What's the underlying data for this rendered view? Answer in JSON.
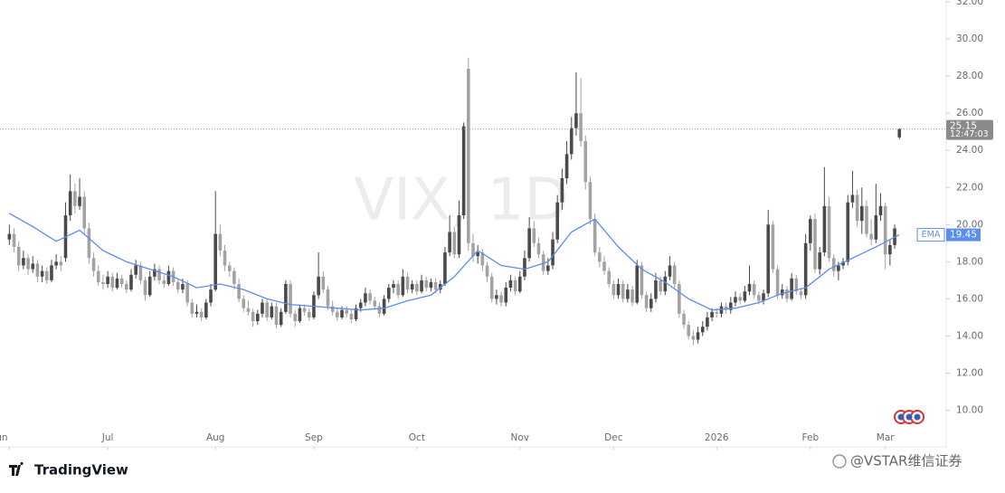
{
  "chart_data": {
    "type": "candlestick",
    "watermark": "VIX, 1D",
    "up_color": "#4a4a4a",
    "down_color": "#a3a3a3",
    "xlim": [
      -2,
      200
    ],
    "ylim": [
      9.1,
      32.1
    ],
    "yticks": [
      {
        "value": 10,
        "label": "10.00"
      },
      {
        "value": 12,
        "label": "12.00"
      },
      {
        "value": 14,
        "label": "14.00"
      },
      {
        "value": 16,
        "label": "16.00"
      },
      {
        "value": 18,
        "label": "18.00"
      },
      {
        "value": 20,
        "label": "20.00"
      },
      {
        "value": 22,
        "label": "22.00"
      },
      {
        "value": 24,
        "label": "24.00"
      },
      {
        "value": 26,
        "label": "26.00"
      },
      {
        "value": 28,
        "label": "28.00"
      },
      {
        "value": 30,
        "label": "30.00"
      },
      {
        "value": 32,
        "label": "32.00"
      }
    ],
    "xticks": [
      {
        "value": 0,
        "label": "Jun"
      },
      {
        "value": 21,
        "label": "Jul"
      },
      {
        "value": 44,
        "label": "Aug"
      },
      {
        "value": 65,
        "label": "Sep"
      },
      {
        "value": 87,
        "label": "Oct"
      },
      {
        "value": 109,
        "label": "Nov"
      },
      {
        "value": 129,
        "label": "Dec"
      },
      {
        "value": 151,
        "label": "2026"
      },
      {
        "value": 171,
        "label": "Feb"
      },
      {
        "value": 187,
        "label": "Mar"
      }
    ],
    "ohlc": [
      [
        19.2,
        20.0,
        18.9,
        19.5
      ],
      [
        19.5,
        19.8,
        18.5,
        18.8
      ],
      [
        18.8,
        19.1,
        17.5,
        17.8
      ],
      [
        17.8,
        18.6,
        17.6,
        18.2
      ],
      [
        18.2,
        18.4,
        17.3,
        17.6
      ],
      [
        17.6,
        18.3,
        17.4,
        17.9
      ],
      [
        17.9,
        18.1,
        16.9,
        17.2
      ],
      [
        17.2,
        17.8,
        16.9,
        17.5
      ],
      [
        17.5,
        17.7,
        16.8,
        17.0
      ],
      [
        17.0,
        18.1,
        16.9,
        17.8
      ],
      [
        17.8,
        18.4,
        17.6,
        18.0
      ],
      [
        18.0,
        18.3,
        17.5,
        17.8
      ],
      [
        18.2,
        21.2,
        18.0,
        20.5
      ],
      [
        20.5,
        22.7,
        20.2,
        21.8
      ],
      [
        21.8,
        22.2,
        20.6,
        21.0
      ],
      [
        21.0,
        22.5,
        20.8,
        21.5
      ],
      [
        21.5,
        21.8,
        19.5,
        19.8
      ],
      [
        19.8,
        20.1,
        17.9,
        18.2
      ],
      [
        18.2,
        18.5,
        17.2,
        17.5
      ],
      [
        17.5,
        17.8,
        16.7,
        16.9
      ],
      [
        16.9,
        17.3,
        16.5,
        16.8
      ],
      [
        16.8,
        17.5,
        16.6,
        17.2
      ],
      [
        17.2,
        17.4,
        16.4,
        16.6
      ],
      [
        16.6,
        17.4,
        16.5,
        17.1
      ],
      [
        17.1,
        17.3,
        16.6,
        16.8
      ],
      [
        16.8,
        17.0,
        16.3,
        16.5
      ],
      [
        16.5,
        17.6,
        16.4,
        17.3
      ],
      [
        17.3,
        18.1,
        17.1,
        17.8
      ],
      [
        17.8,
        18.0,
        16.8,
        17.0
      ],
      [
        17.0,
        17.2,
        15.9,
        16.2
      ],
      [
        16.2,
        17.5,
        16.1,
        17.2
      ],
      [
        17.2,
        17.9,
        17.0,
        17.6
      ],
      [
        17.6,
        17.8,
        16.8,
        17.0
      ],
      [
        17.0,
        17.3,
        16.6,
        16.8
      ],
      [
        16.8,
        17.8,
        16.7,
        17.5
      ],
      [
        17.5,
        17.7,
        16.7,
        16.9
      ],
      [
        16.9,
        17.1,
        16.3,
        16.5
      ],
      [
        16.5,
        17.1,
        16.3,
        16.8
      ],
      [
        16.8,
        17.0,
        15.6,
        15.8
      ],
      [
        15.8,
        16.0,
        15.0,
        15.2
      ],
      [
        15.2,
        15.7,
        15.0,
        15.3
      ],
      [
        15.3,
        15.5,
        14.8,
        15.0
      ],
      [
        15.0,
        16.0,
        14.9,
        15.8
      ],
      [
        15.8,
        16.8,
        15.6,
        16.5
      ],
      [
        16.5,
        21.8,
        16.4,
        19.5
      ],
      [
        19.5,
        20.0,
        18.3,
        18.6
      ],
      [
        18.6,
        18.9,
        17.5,
        17.8
      ],
      [
        17.8,
        18.0,
        17.2,
        17.5
      ],
      [
        17.5,
        17.7,
        16.5,
        16.8
      ],
      [
        16.8,
        17.1,
        15.8,
        16.0
      ],
      [
        16.0,
        16.2,
        15.3,
        15.5
      ],
      [
        15.5,
        15.9,
        15.1,
        15.3
      ],
      [
        15.3,
        15.5,
        14.5,
        14.8
      ],
      [
        14.8,
        15.4,
        14.6,
        15.2
      ],
      [
        15.2,
        16.0,
        15.0,
        15.8
      ],
      [
        15.8,
        16.0,
        14.8,
        15.0
      ],
      [
        15.0,
        15.8,
        14.9,
        15.6
      ],
      [
        15.6,
        15.8,
        14.4,
        14.6
      ],
      [
        14.6,
        15.5,
        14.5,
        15.3
      ],
      [
        15.3,
        17.0,
        15.2,
        16.8
      ],
      [
        16.8,
        17.0,
        15.0,
        15.2
      ],
      [
        15.2,
        15.4,
        14.5,
        14.8
      ],
      [
        14.8,
        15.7,
        14.7,
        15.5
      ],
      [
        15.5,
        15.7,
        15.1,
        15.3
      ],
      [
        15.3,
        15.5,
        14.8,
        15.0
      ],
      [
        15.0,
        16.4,
        14.9,
        16.2
      ],
      [
        16.2,
        18.5,
        16.0,
        17.2
      ],
      [
        17.2,
        17.5,
        16.3,
        16.5
      ],
      [
        16.5,
        16.7,
        15.4,
        15.6
      ],
      [
        15.6,
        15.9,
        15.1,
        15.3
      ],
      [
        15.3,
        15.5,
        14.8,
        15.0
      ],
      [
        15.0,
        15.6,
        14.9,
        15.4
      ],
      [
        15.4,
        15.6,
        15.0,
        15.2
      ],
      [
        15.2,
        15.4,
        14.7,
        14.9
      ],
      [
        14.9,
        15.7,
        14.8,
        15.5
      ],
      [
        15.5,
        16.0,
        15.3,
        15.8
      ],
      [
        15.8,
        16.6,
        15.6,
        16.3
      ],
      [
        16.3,
        16.5,
        15.7,
        15.9
      ],
      [
        15.9,
        16.1,
        15.4,
        15.6
      ],
      [
        15.6,
        15.8,
        15.0,
        15.2
      ],
      [
        15.2,
        16.2,
        15.1,
        16.0
      ],
      [
        16.0,
        16.8,
        15.8,
        16.6
      ],
      [
        16.6,
        17.0,
        16.3,
        16.8
      ],
      [
        16.8,
        17.0,
        16.0,
        16.2
      ],
      [
        16.2,
        17.6,
        16.1,
        17.2
      ],
      [
        17.2,
        17.4,
        16.3,
        16.5
      ],
      [
        16.5,
        17.0,
        16.3,
        16.8
      ],
      [
        16.8,
        17.0,
        16.2,
        16.4
      ],
      [
        16.4,
        17.3,
        16.3,
        17.0
      ],
      [
        17.0,
        17.2,
        16.4,
        16.6
      ],
      [
        16.6,
        17.1,
        16.4,
        16.9
      ],
      [
        16.9,
        17.1,
        16.3,
        16.5
      ],
      [
        16.5,
        17.0,
        16.3,
        16.8
      ],
      [
        16.8,
        18.8,
        16.7,
        18.5
      ],
      [
        18.5,
        20.5,
        18.3,
        19.6
      ],
      [
        19.6,
        19.9,
        18.2,
        18.4
      ],
      [
        18.4,
        21.3,
        18.2,
        20.5
      ],
      [
        20.5,
        25.5,
        20.3,
        25.3
      ],
      [
        28.4,
        29.0,
        18.6,
        19.0
      ],
      [
        19.0,
        19.5,
        18.0,
        18.3
      ],
      [
        18.3,
        18.9,
        17.9,
        18.5
      ],
      [
        18.5,
        18.7,
        17.5,
        17.8
      ],
      [
        17.8,
        18.0,
        16.9,
        17.2
      ],
      [
        17.2,
        17.4,
        15.8,
        16.0
      ],
      [
        16.0,
        16.5,
        15.7,
        16.2
      ],
      [
        16.2,
        16.4,
        15.6,
        15.8
      ],
      [
        15.8,
        16.9,
        15.6,
        16.6
      ],
      [
        16.6,
        17.3,
        16.4,
        17.0
      ],
      [
        17.0,
        17.2,
        16.2,
        16.4
      ],
      [
        16.4,
        17.5,
        16.3,
        17.2
      ],
      [
        17.2,
        18.6,
        17.0,
        18.2
      ],
      [
        18.2,
        20.4,
        18.0,
        19.8
      ],
      [
        19.8,
        20.2,
        18.8,
        19.0
      ],
      [
        19.0,
        19.3,
        18.2,
        18.4
      ],
      [
        18.4,
        18.6,
        17.3,
        17.5
      ],
      [
        17.5,
        18.2,
        17.3,
        17.8
      ],
      [
        17.8,
        19.6,
        17.6,
        19.2
      ],
      [
        19.2,
        21.6,
        19.0,
        21.2
      ],
      [
        21.2,
        23.0,
        20.8,
        22.5
      ],
      [
        22.5,
        24.5,
        22.2,
        23.8
      ],
      [
        23.8,
        25.8,
        23.5,
        25.2
      ],
      [
        25.2,
        28.2,
        24.8,
        26.0
      ],
      [
        26.0,
        27.9,
        24.2,
        24.5
      ],
      [
        24.5,
        24.8,
        21.9,
        22.3
      ],
      [
        22.3,
        22.6,
        20.0,
        20.3
      ],
      [
        20.3,
        20.6,
        18.3,
        18.5
      ],
      [
        18.5,
        18.8,
        17.7,
        18.0
      ],
      [
        18.0,
        18.3,
        17.3,
        17.5
      ],
      [
        17.5,
        17.7,
        16.6,
        16.8
      ],
      [
        16.8,
        17.0,
        16.0,
        16.2
      ],
      [
        16.2,
        17.1,
        16.0,
        16.8
      ],
      [
        16.8,
        17.0,
        15.8,
        16.0
      ],
      [
        16.0,
        16.8,
        15.8,
        16.5
      ],
      [
        16.5,
        16.7,
        15.6,
        15.8
      ],
      [
        15.8,
        18.1,
        15.7,
        17.8
      ],
      [
        17.8,
        18.0,
        16.0,
        16.2
      ],
      [
        16.2,
        16.4,
        15.3,
        15.5
      ],
      [
        15.5,
        16.3,
        15.3,
        16.0
      ],
      [
        16.0,
        17.4,
        15.8,
        17.0
      ],
      [
        17.0,
        17.2,
        16.2,
        16.4
      ],
      [
        16.4,
        17.5,
        16.2,
        17.2
      ],
      [
        17.2,
        18.3,
        17.0,
        17.8
      ],
      [
        17.8,
        18.0,
        16.6,
        16.8
      ],
      [
        16.8,
        17.0,
        15.0,
        15.2
      ],
      [
        15.2,
        15.4,
        14.4,
        14.6
      ],
      [
        14.6,
        14.8,
        13.8,
        14.0
      ],
      [
        14.0,
        14.3,
        13.5,
        13.8
      ],
      [
        13.8,
        14.5,
        13.6,
        14.2
      ],
      [
        14.2,
        14.8,
        14.0,
        14.5
      ],
      [
        14.5,
        15.3,
        14.3,
        15.0
      ],
      [
        15.0,
        15.5,
        14.8,
        15.3
      ],
      [
        15.3,
        15.5,
        15.0,
        15.2
      ],
      [
        15.2,
        15.8,
        15.0,
        15.6
      ],
      [
        15.6,
        15.8,
        15.2,
        15.4
      ],
      [
        15.4,
        16.1,
        15.2,
        15.8
      ],
      [
        15.8,
        16.4,
        15.6,
        16.1
      ],
      [
        16.1,
        16.3,
        15.7,
        15.9
      ],
      [
        15.9,
        16.7,
        15.8,
        16.4
      ],
      [
        16.4,
        17.8,
        16.2,
        16.8
      ],
      [
        16.8,
        17.0,
        16.0,
        16.2
      ],
      [
        16.2,
        16.4,
        15.7,
        15.9
      ],
      [
        15.9,
        16.5,
        15.7,
        16.3
      ],
      [
        16.3,
        20.8,
        16.1,
        20.0
      ],
      [
        20.0,
        20.2,
        17.4,
        17.6
      ],
      [
        17.6,
        17.8,
        16.0,
        16.2
      ],
      [
        16.2,
        16.8,
        16.0,
        16.5
      ],
      [
        16.5,
        16.7,
        15.8,
        16.0
      ],
      [
        16.0,
        17.4,
        15.9,
        17.1
      ],
      [
        17.1,
        17.3,
        16.2,
        16.4
      ],
      [
        16.4,
        16.6,
        16.0,
        16.2
      ],
      [
        16.2,
        19.5,
        16.0,
        19.0
      ],
      [
        19.0,
        20.5,
        18.6,
        20.3
      ],
      [
        20.3,
        20.6,
        17.4,
        17.6
      ],
      [
        17.6,
        18.8,
        17.3,
        18.5
      ],
      [
        18.5,
        23.1,
        18.3,
        21.0
      ],
      [
        21.0,
        21.5,
        18.0,
        18.2
      ],
      [
        18.2,
        18.4,
        17.2,
        17.5
      ],
      [
        17.5,
        18.0,
        17.0,
        17.8
      ],
      [
        17.8,
        18.2,
        17.6,
        18.0
      ],
      [
        18.0,
        21.6,
        17.8,
        21.2
      ],
      [
        21.2,
        22.9,
        20.9,
        21.6
      ],
      [
        21.6,
        21.9,
        19.9,
        20.2
      ],
      [
        20.2,
        22.0,
        19.5,
        21.0
      ],
      [
        21.0,
        21.3,
        19.3,
        19.5
      ],
      [
        19.5,
        20.3,
        18.9,
        19.2
      ],
      [
        19.2,
        22.2,
        19.0,
        20.5
      ],
      [
        20.5,
        21.7,
        20.2,
        21.0
      ],
      [
        21.0,
        21.2,
        17.6,
        18.4
      ],
      [
        18.4,
        19.2,
        17.8,
        18.9
      ],
      [
        18.9,
        20.0,
        18.7,
        19.8
      ],
      [
        24.7,
        25.2,
        24.6,
        25.15
      ]
    ],
    "last_time": "12:47:03",
    "ema": {
      "name": "EMA",
      "color": "#5b8def",
      "x": [
        0,
        5,
        10,
        15,
        20,
        25,
        30,
        35,
        40,
        45,
        50,
        55,
        60,
        65,
        70,
        75,
        80,
        85,
        90,
        95,
        100,
        105,
        110,
        115,
        120,
        125,
        130,
        135,
        140,
        145,
        150,
        155,
        160,
        165,
        170,
        175,
        180,
        185,
        190
      ],
      "values": [
        20.6,
        19.9,
        19.1,
        19.7,
        18.6,
        18.0,
        17.6,
        17.2,
        16.6,
        16.8,
        16.5,
        16.0,
        15.7,
        15.6,
        15.5,
        15.4,
        15.5,
        15.9,
        16.2,
        17.2,
        18.6,
        17.8,
        17.6,
        18.0,
        19.6,
        20.3,
        18.8,
        17.6,
        16.9,
        16.0,
        15.4,
        15.5,
        15.8,
        16.3,
        16.6,
        17.6,
        18.2,
        18.8,
        19.45
      ]
    }
  },
  "brand": "TradingView",
  "credit": "@VSTAR维信证券"
}
